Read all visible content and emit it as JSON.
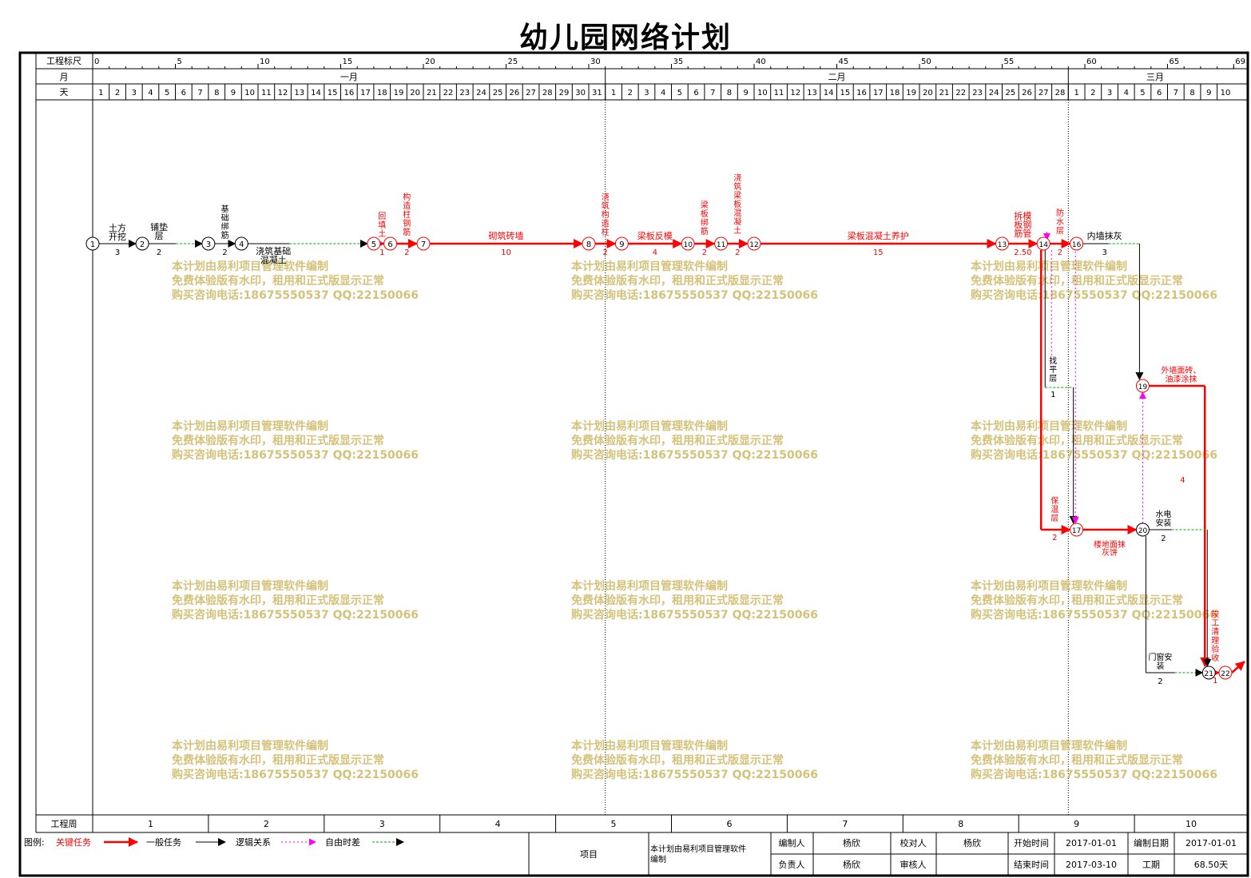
{
  "title": "幼儿园网络计划",
  "scale": {
    "ruler_label": "工程标尺",
    "month_label": "月",
    "day_label": "天",
    "week_label": "工程周",
    "ruler_ticks": [
      "0",
      "5",
      "10",
      "15",
      "20",
      "25",
      "30",
      "35",
      "40",
      "45",
      "50",
      "55",
      "60",
      "65",
      "69"
    ],
    "months": [
      "一月",
      "二月",
      "三月"
    ],
    "days": [
      "1",
      "2",
      "3",
      "4",
      "5",
      "6",
      "7",
      "8",
      "9",
      "10",
      "11",
      "12",
      "13",
      "14",
      "15",
      "16",
      "17",
      "18",
      "19",
      "20",
      "21",
      "22",
      "23",
      "24",
      "25",
      "26",
      "27",
      "28",
      "29",
      "30",
      "31",
      "1",
      "2",
      "3",
      "4",
      "5",
      "6",
      "7",
      "8",
      "9",
      "10",
      "11",
      "12",
      "13",
      "14",
      "15",
      "16",
      "17",
      "18",
      "19",
      "20",
      "21",
      "22",
      "23",
      "24",
      "25",
      "26",
      "27",
      "28",
      "1",
      "2",
      "3",
      "4",
      "5",
      "6",
      "7",
      "8",
      "9",
      "10"
    ],
    "weeks": [
      "1",
      "2",
      "3",
      "4",
      "5",
      "6",
      "7",
      "8",
      "9",
      "10"
    ]
  },
  "nodes": [
    {
      "id": "1",
      "day": 0,
      "row": 0
    },
    {
      "id": "2",
      "day": 3,
      "row": 0
    },
    {
      "id": "3",
      "day": 7,
      "row": 0
    },
    {
      "id": "4",
      "day": 9,
      "row": 0
    },
    {
      "id": "5",
      "day": 17,
      "row": 0
    },
    {
      "id": "6",
      "day": 18,
      "row": 0
    },
    {
      "id": "7",
      "day": 20,
      "row": 0
    },
    {
      "id": "8",
      "day": 30,
      "row": 0
    },
    {
      "id": "9",
      "day": 32,
      "row": 0
    },
    {
      "id": "10",
      "day": 36,
      "row": 0
    },
    {
      "id": "11",
      "day": 38,
      "row": 0
    },
    {
      "id": "12",
      "day": 40,
      "row": 0
    },
    {
      "id": "13",
      "day": 55,
      "row": 0
    },
    {
      "id": "14",
      "day": 57.5,
      "row": 0
    },
    {
      "id": "16",
      "day": 59.5,
      "row": 0
    },
    {
      "id": "17",
      "day": 59.5,
      "row": 2
    },
    {
      "id": "19",
      "day": 63.5,
      "row": 1
    },
    {
      "id": "20",
      "day": 63.5,
      "row": 2
    },
    {
      "id": "21",
      "day": 67.5,
      "row": 3
    },
    {
      "id": "22",
      "day": 68.5,
      "row": 3
    }
  ],
  "tasks": [
    {
      "name": "土方开挖",
      "duration": "3",
      "type": "normal"
    },
    {
      "name": "铺垫层",
      "duration": "2",
      "type": "normal"
    },
    {
      "name": "基础绑筋",
      "duration": "2",
      "type": "normal"
    },
    {
      "name": "浇筑基础混凝土",
      "duration": "",
      "type": "normal"
    },
    {
      "name": "回填土",
      "duration": "1",
      "type": "critical"
    },
    {
      "name": "构造柱钢筋",
      "duration": "2",
      "type": "critical"
    },
    {
      "name": "砌筑砖墙",
      "duration": "10",
      "type": "critical"
    },
    {
      "name": "浇筑构造柱",
      "duration": "2",
      "type": "critical"
    },
    {
      "name": "梁板反模",
      "duration": "4",
      "type": "critical"
    },
    {
      "name": "梁板绑筋",
      "duration": "2",
      "type": "critical"
    },
    {
      "name": "浇筑梁板混凝土",
      "duration": "2",
      "type": "critical"
    },
    {
      "name": "梁板混凝土养护",
      "duration": "15",
      "type": "critical"
    },
    {
      "name": "拆模板钢筋管",
      "duration": "2.50",
      "type": "critical"
    },
    {
      "name": "防水层",
      "duration": "2",
      "type": "critical"
    },
    {
      "name": "内墙抹灰",
      "duration": "3",
      "type": "normal"
    },
    {
      "name": "找平层",
      "duration": "1",
      "type": "normal"
    },
    {
      "name": "保温层",
      "duration": "2",
      "type": "critical"
    },
    {
      "name": "楼地面抹灰饼",
      "duration": "",
      "type": "critical"
    },
    {
      "name": "外墙面砖、油漆涂抹",
      "duration": "4",
      "type": "critical"
    },
    {
      "name": "水电安装",
      "duration": "2",
      "type": "normal"
    },
    {
      "name": "门窗安装",
      "duration": "2",
      "type": "normal"
    },
    {
      "name": "竣工清理验收",
      "duration": "1",
      "type": "critical"
    }
  ],
  "watermark": [
    "本计划由易利项目管理软件编制",
    "免费体验版有水印，租用和正式版显示正常",
    "购买咨询电话:18675550537 QQ:22150066"
  ],
  "legend": {
    "label": "图例:",
    "critical": "关键任务",
    "normal": "一般任务",
    "logic": "逻辑关系",
    "float": "自由时差"
  },
  "info": {
    "project_label": "项目",
    "project_value": "本计划由易利项目管理软件编制",
    "compiler_label": "编制人",
    "compiler": "杨欣",
    "checker_label": "校对人",
    "checker": "杨欣",
    "start_label": "开始时间",
    "start": "2017-01-01",
    "date_label": "编制日期",
    "date": "2017-01-01",
    "owner_label": "负责人",
    "owner": "杨欣",
    "reviewer_label": "审核人",
    "reviewer": "",
    "end_label": "结束时间",
    "end": "2017-03-10",
    "duration_label": "工期",
    "duration": "68.50天"
  },
  "colors": {
    "critical": "#ff0000",
    "normal": "#000000",
    "float": "#00aa00",
    "logic": "#ff00ff",
    "watermark": "#d4c27a"
  }
}
